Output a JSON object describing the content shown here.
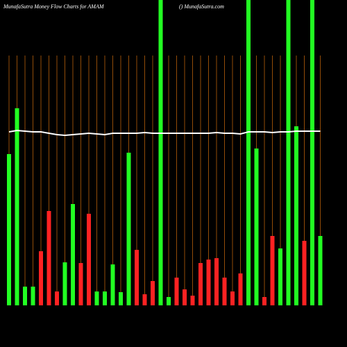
{
  "chart_data": {
    "type": "bar",
    "title": "MunafaSutra  Money Flow  Charts for AMAM",
    "subtitle": "() MunafaSutra.com",
    "categories": [
      null,
      null,
      null,
      null,
      null,
      null,
      null,
      null,
      null,
      null,
      null,
      null,
      null,
      null,
      null,
      null,
      null,
      null,
      null,
      null,
      null,
      null,
      null,
      null,
      null,
      null,
      null,
      null,
      null,
      null,
      null,
      null,
      null,
      null,
      null,
      null,
      null,
      null,
      null,
      null
    ],
    "values": [
      218,
      284,
      27,
      27,
      78,
      136,
      20,
      62,
      146,
      61,
      132,
      20,
      20,
      59,
      19,
      220,
      80,
      16,
      35,
      440,
      12,
      40,
      23,
      14,
      61,
      66,
      68,
      40,
      20,
      46,
      440,
      226,
      12,
      100,
      82,
      440,
      258,
      93,
      440,
      100
    ],
    "colors": [
      "#22ff22",
      "#22ff22",
      "#22ff22",
      "#22ff22",
      "#ff2222",
      "#ff2222",
      "#ff2222",
      "#22ff22",
      "#22ff22",
      "#ff2222",
      "#ff2222",
      "#22ff22",
      "#22ff22",
      "#22ff22",
      "#22ff22",
      "#22ff22",
      "#ff2222",
      "#ff2222",
      "#ff2222",
      "#22ff22",
      "#22ff22",
      "#ff2222",
      "#ff2222",
      "#ff2222",
      "#ff2222",
      "#ff2222",
      "#ff2222",
      "#ff2222",
      "#ff2222",
      "#ff2222",
      "#22ff22",
      "#22ff22",
      "#ff2222",
      "#ff2222",
      "#22ff22",
      "#22ff22",
      "#22ff22",
      "#ff2222",
      "#22ff22",
      "#22ff22"
    ],
    "ylim": [
      0,
      440
    ],
    "grid": true,
    "grid_color": "#b8600a",
    "overlay": {
      "type": "line",
      "color": "#ffffff",
      "values": [
        250,
        252,
        251,
        250,
        250,
        248,
        246,
        245,
        246,
        247,
        248,
        247,
        246,
        248,
        248,
        248,
        248,
        249,
        248,
        248,
        248,
        248,
        248,
        248,
        248,
        248,
        249,
        248,
        248,
        247,
        250,
        250,
        250,
        249,
        250,
        250,
        251,
        251,
        251,
        251
      ]
    }
  }
}
